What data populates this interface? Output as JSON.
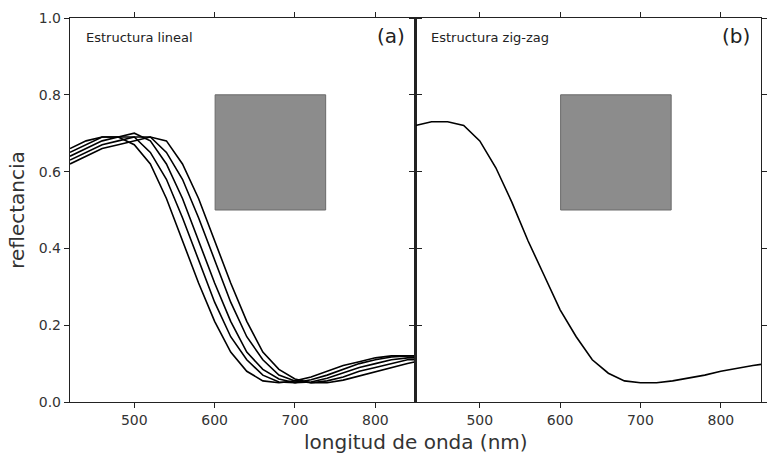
{
  "chart_data": [
    {
      "type": "line",
      "title": "Estructura lineal",
      "label": "(a)",
      "ylabel": "reflectancia",
      "x": [
        420,
        440,
        460,
        480,
        500,
        520,
        540,
        560,
        580,
        600,
        620,
        640,
        660,
        680,
        700,
        720,
        740,
        760,
        780,
        800,
        820,
        840,
        850
      ],
      "series": [
        {
          "color": "#000000",
          "values": [
            0.66,
            0.68,
            0.69,
            0.69,
            0.67,
            0.62,
            0.53,
            0.42,
            0.31,
            0.21,
            0.13,
            0.08,
            0.055,
            0.05,
            0.055,
            0.065,
            0.08,
            0.095,
            0.105,
            0.115,
            0.12,
            0.12,
            0.12
          ]
        },
        {
          "color": "#000000",
          "values": [
            0.65,
            0.67,
            0.69,
            0.69,
            0.69,
            0.65,
            0.58,
            0.48,
            0.37,
            0.26,
            0.17,
            0.11,
            0.07,
            0.052,
            0.05,
            0.058,
            0.07,
            0.085,
            0.1,
            0.11,
            0.117,
            0.12,
            0.12
          ]
        },
        {
          "color": "#000000",
          "values": [
            0.64,
            0.66,
            0.68,
            0.69,
            0.7,
            0.68,
            0.62,
            0.53,
            0.42,
            0.31,
            0.21,
            0.13,
            0.085,
            0.06,
            0.05,
            0.052,
            0.062,
            0.075,
            0.09,
            0.1,
            0.11,
            0.115,
            0.115
          ]
        },
        {
          "color": "#000000",
          "values": [
            0.63,
            0.65,
            0.67,
            0.68,
            0.69,
            0.69,
            0.65,
            0.58,
            0.48,
            0.37,
            0.26,
            0.17,
            0.11,
            0.07,
            0.055,
            0.05,
            0.055,
            0.065,
            0.08,
            0.09,
            0.1,
            0.11,
            0.11
          ]
        },
        {
          "color": "#000000",
          "values": [
            0.62,
            0.64,
            0.66,
            0.67,
            0.68,
            0.69,
            0.68,
            0.62,
            0.53,
            0.42,
            0.31,
            0.21,
            0.13,
            0.085,
            0.06,
            0.05,
            0.05,
            0.057,
            0.068,
            0.08,
            0.09,
            0.1,
            0.105
          ]
        }
      ],
      "xlim": [
        420,
        850
      ],
      "xticks": [
        500,
        600,
        700,
        800
      ],
      "ylim": [
        0,
        1
      ],
      "yticks": [
        {
          "value": 0,
          "label": "0.0"
        },
        0.2,
        0.4,
        0.6,
        0.8,
        {
          "value": 1,
          "label": "1.0"
        }
      ],
      "grid": false,
      "line_style": "solid"
    },
    {
      "type": "line",
      "title": "Estructura zig-zag",
      "label": "(b)",
      "x": [
        420,
        440,
        460,
        480,
        500,
        520,
        540,
        560,
        580,
        600,
        620,
        640,
        660,
        680,
        700,
        720,
        740,
        760,
        780,
        800,
        820,
        840,
        850
      ],
      "series": [
        {
          "color": "#000000",
          "values": [
            0.72,
            0.73,
            0.73,
            0.72,
            0.68,
            0.61,
            0.52,
            0.42,
            0.33,
            0.24,
            0.17,
            0.11,
            0.075,
            0.055,
            0.05,
            0.05,
            0.055,
            0.062,
            0.07,
            0.08,
            0.088,
            0.095,
            0.098
          ]
        }
      ],
      "xlim": [
        420,
        850
      ],
      "xticks": [
        500,
        600,
        700,
        800
      ],
      "ylim": [
        0,
        1
      ],
      "yticks": [
        {
          "value": 0,
          "label": "0.0"
        },
        0.2,
        0.4,
        0.6,
        0.8,
        {
          "value": 1,
          "label": "1.0"
        }
      ],
      "grid": false,
      "line_style": "solid",
      "tick_labels": "x"
    }
  ],
  "xlabel": "longitud de onda (nm)"
}
